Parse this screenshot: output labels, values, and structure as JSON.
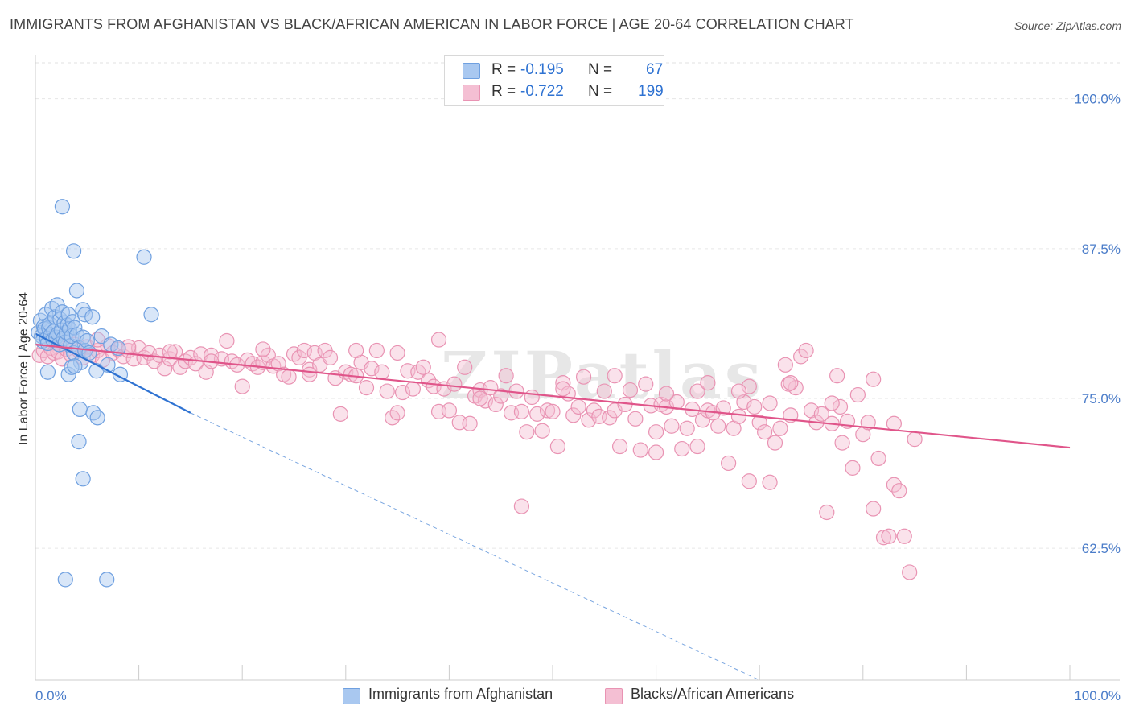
{
  "title": "IMMIGRANTS FROM AFGHANISTAN VS BLACK/AFRICAN AMERICAN IN LABOR FORCE | AGE 20-64 CORRELATION CHART",
  "source": "Source: ZipAtlas.com",
  "watermark": "ZIPatlas",
  "legend": {
    "rows": [
      {
        "r_label": "R =",
        "r_value": "-0.195",
        "n_label": "N =",
        "n_value": "67"
      },
      {
        "r_label": "R =",
        "r_value": "-0.722",
        "n_label": "N =",
        "n_value": "199"
      }
    ]
  },
  "chart_data": {
    "type": "scatter",
    "ylabel": "In Labor Force | Age 20-64",
    "xlim": [
      0,
      100
    ],
    "ylim": [
      51.5,
      103
    ],
    "y_ticks": [
      {
        "value": 100.0,
        "label": "100.0%"
      },
      {
        "value": 87.5,
        "label": "87.5%"
      },
      {
        "value": 75.0,
        "label": "75.0%"
      },
      {
        "value": 62.5,
        "label": "62.5%"
      }
    ],
    "x_tick_labels": {
      "left": "0.0%",
      "right": "100.0%"
    },
    "grid": true,
    "series": [
      {
        "name": "Immigrants from Afghanistan",
        "color": "#6fa0e0",
        "fill": "#a9c8f0",
        "trend_color": "#2e72d2",
        "trend": {
          "x": [
            0,
            15
          ],
          "y": [
            80.4,
            73.8
          ],
          "dashed_to": [
            70,
            51.5
          ]
        },
        "points": [
          [
            0.3,
            80.5
          ],
          [
            0.5,
            81.5
          ],
          [
            0.6,
            80.2
          ],
          [
            0.7,
            79.8
          ],
          [
            0.8,
            81.0
          ],
          [
            0.9,
            80.8
          ],
          [
            1.0,
            82.0
          ],
          [
            1.1,
            80.0
          ],
          [
            1.2,
            79.6
          ],
          [
            1.3,
            80.9
          ],
          [
            1.4,
            81.2
          ],
          [
            1.5,
            80.3
          ],
          [
            1.6,
            82.5
          ],
          [
            1.7,
            79.9
          ],
          [
            1.8,
            80.6
          ],
          [
            1.9,
            81.8
          ],
          [
            2.0,
            80.1
          ],
          [
            2.1,
            82.8
          ],
          [
            2.2,
            80.4
          ],
          [
            2.3,
            79.5
          ],
          [
            2.4,
            81.6
          ],
          [
            2.5,
            80.7
          ],
          [
            2.6,
            82.2
          ],
          [
            2.7,
            80.0
          ],
          [
            2.8,
            81.3
          ],
          [
            2.9,
            79.7
          ],
          [
            3.0,
            80.5
          ],
          [
            3.1,
            81.1
          ],
          [
            3.2,
            82.0
          ],
          [
            3.3,
            80.8
          ],
          [
            3.4,
            79.4
          ],
          [
            3.5,
            80.2
          ],
          [
            3.6,
            81.4
          ],
          [
            3.7,
            78.8
          ],
          [
            3.8,
            80.9
          ],
          [
            4.0,
            80.3
          ],
          [
            4.2,
            79.2
          ],
          [
            4.4,
            78.0
          ],
          [
            4.6,
            80.1
          ],
          [
            4.8,
            79.0
          ],
          [
            1.2,
            77.2
          ],
          [
            2.6,
            91.0
          ],
          [
            3.2,
            77.0
          ],
          [
            3.5,
            77.6
          ],
          [
            3.7,
            87.3
          ],
          [
            4.0,
            84.0
          ],
          [
            4.2,
            71.4
          ],
          [
            4.3,
            74.1
          ],
          [
            4.6,
            82.4
          ],
          [
            4.8,
            82.0
          ],
          [
            5.0,
            79.8
          ],
          [
            5.2,
            78.8
          ],
          [
            5.5,
            81.8
          ],
          [
            5.6,
            73.8
          ],
          [
            5.9,
            77.3
          ],
          [
            6.0,
            73.4
          ],
          [
            6.4,
            80.2
          ],
          [
            7.0,
            77.8
          ],
          [
            7.3,
            79.5
          ],
          [
            8.0,
            79.2
          ],
          [
            8.2,
            77.0
          ],
          [
            10.5,
            86.8
          ],
          [
            11.2,
            82.0
          ],
          [
            2.9,
            59.9
          ],
          [
            3.8,
            77.7
          ],
          [
            4.6,
            68.3
          ],
          [
            6.9,
            59.9
          ]
        ]
      },
      {
        "name": "Blacks/African Americans",
        "color": "#e993b3",
        "fill": "#f4bfd3",
        "trend_color": "#e0558a",
        "trend": {
          "x": [
            0,
            100
          ],
          "y": [
            79.5,
            70.9
          ]
        },
        "points": [
          [
            0.4,
            78.6
          ],
          [
            0.8,
            79.0
          ],
          [
            1.2,
            78.5
          ],
          [
            1.5,
            79.2
          ],
          [
            1.8,
            78.8
          ],
          [
            2.0,
            79.6
          ],
          [
            2.2,
            78.9
          ],
          [
            2.6,
            78.3
          ],
          [
            3.0,
            79.1
          ],
          [
            3.4,
            78.7
          ],
          [
            3.8,
            79.5
          ],
          [
            4.2,
            79.0
          ],
          [
            4.6,
            78.4
          ],
          [
            5.0,
            79.3
          ],
          [
            5.5,
            78.6
          ],
          [
            6.0,
            79.0
          ],
          [
            6.5,
            78.2
          ],
          [
            7.0,
            79.4
          ],
          [
            7.5,
            78.8
          ],
          [
            8.0,
            79.1
          ],
          [
            8.5,
            78.5
          ],
          [
            9.0,
            79.0
          ],
          [
            9.5,
            78.3
          ],
          [
            10.0,
            79.2
          ],
          [
            10.5,
            78.4
          ],
          [
            11.0,
            78.8
          ],
          [
            11.5,
            78.1
          ],
          [
            12.0,
            78.6
          ],
          [
            12.5,
            77.5
          ],
          [
            13.0,
            78.3
          ],
          [
            13.5,
            78.9
          ],
          [
            14.0,
            77.6
          ],
          [
            14.5,
            78.1
          ],
          [
            15.0,
            78.4
          ],
          [
            15.5,
            77.9
          ],
          [
            16.0,
            78.7
          ],
          [
            16.5,
            77.2
          ],
          [
            17.0,
            78.6
          ],
          [
            18.0,
            78.3
          ],
          [
            18.5,
            79.8
          ],
          [
            19.0,
            78.1
          ],
          [
            19.5,
            77.8
          ],
          [
            20.0,
            76.0
          ],
          [
            20.5,
            78.2
          ],
          [
            21.0,
            77.9
          ],
          [
            21.5,
            77.6
          ],
          [
            22.0,
            78.0
          ],
          [
            22.5,
            78.6
          ],
          [
            23.0,
            77.7
          ],
          [
            23.5,
            77.9
          ],
          [
            24.0,
            77.0
          ],
          [
            24.5,
            76.8
          ],
          [
            25.0,
            78.7
          ],
          [
            25.5,
            78.4
          ],
          [
            26.0,
            79.0
          ],
          [
            26.5,
            77.4
          ],
          [
            27.0,
            78.8
          ],
          [
            27.5,
            77.8
          ],
          [
            28.0,
            79.0
          ],
          [
            28.5,
            78.4
          ],
          [
            29.0,
            76.7
          ],
          [
            29.5,
            73.7
          ],
          [
            30.0,
            77.2
          ],
          [
            30.5,
            77.0
          ],
          [
            31.0,
            76.9
          ],
          [
            31.5,
            78.0
          ],
          [
            32.0,
            75.9
          ],
          [
            32.5,
            77.5
          ],
          [
            33.0,
            79.0
          ],
          [
            33.5,
            77.2
          ],
          [
            34.0,
            75.6
          ],
          [
            34.5,
            73.4
          ],
          [
            35.0,
            73.8
          ],
          [
            35.5,
            75.5
          ],
          [
            36.0,
            77.3
          ],
          [
            36.5,
            75.8
          ],
          [
            37.0,
            77.2
          ],
          [
            37.5,
            77.6
          ],
          [
            38.0,
            76.5
          ],
          [
            38.5,
            76.0
          ],
          [
            39.0,
            73.9
          ],
          [
            39.5,
            75.8
          ],
          [
            40.0,
            74.0
          ],
          [
            40.5,
            76.2
          ],
          [
            41.0,
            73.0
          ],
          [
            41.5,
            77.6
          ],
          [
            42.0,
            72.9
          ],
          [
            42.5,
            75.2
          ],
          [
            43.0,
            75.7
          ],
          [
            43.5,
            74.8
          ],
          [
            44.0,
            75.9
          ],
          [
            44.5,
            74.5
          ],
          [
            45.0,
            75.2
          ],
          [
            45.5,
            76.9
          ],
          [
            46.0,
            73.8
          ],
          [
            46.5,
            75.6
          ],
          [
            47.0,
            73.9
          ],
          [
            47.5,
            72.2
          ],
          [
            48.0,
            75.1
          ],
          [
            48.5,
            73.7
          ],
          [
            49.0,
            72.3
          ],
          [
            49.5,
            74.0
          ],
          [
            50.0,
            73.9
          ],
          [
            50.5,
            71.0
          ],
          [
            51.0,
            76.3
          ],
          [
            51.5,
            75.4
          ],
          [
            52.0,
            73.6
          ],
          [
            52.5,
            74.3
          ],
          [
            53.0,
            76.8
          ],
          [
            53.5,
            73.2
          ],
          [
            54.0,
            74.0
          ],
          [
            54.5,
            73.5
          ],
          [
            55.0,
            75.6
          ],
          [
            55.5,
            73.4
          ],
          [
            56.0,
            74.0
          ],
          [
            56.5,
            71.0
          ],
          [
            57.0,
            74.5
          ],
          [
            57.5,
            75.7
          ],
          [
            58.0,
            73.3
          ],
          [
            58.5,
            70.7
          ],
          [
            59.0,
            76.2
          ],
          [
            59.5,
            74.4
          ],
          [
            60.0,
            72.2
          ],
          [
            60.5,
            74.5
          ],
          [
            61.0,
            74.3
          ],
          [
            61.5,
            72.7
          ],
          [
            62.0,
            74.7
          ],
          [
            62.5,
            70.8
          ],
          [
            63.0,
            72.5
          ],
          [
            63.5,
            74.1
          ],
          [
            64.0,
            75.6
          ],
          [
            64.5,
            73.2
          ],
          [
            65.0,
            74.0
          ],
          [
            65.5,
            73.8
          ],
          [
            66.0,
            72.7
          ],
          [
            66.5,
            74.2
          ],
          [
            67.0,
            69.6
          ],
          [
            67.5,
            72.5
          ],
          [
            68.0,
            73.5
          ],
          [
            68.5,
            74.7
          ],
          [
            69.0,
            76.0
          ],
          [
            69.5,
            74.3
          ],
          [
            70.0,
            73.0
          ],
          [
            70.5,
            72.2
          ],
          [
            71.0,
            74.6
          ],
          [
            71.5,
            71.3
          ],
          [
            72.0,
            72.5
          ],
          [
            72.5,
            77.8
          ],
          [
            73.0,
            73.6
          ],
          [
            73.5,
            75.9
          ],
          [
            74.0,
            78.5
          ],
          [
            74.5,
            79.0
          ],
          [
            75.0,
            74.0
          ],
          [
            75.5,
            73.0
          ],
          [
            76.0,
            73.7
          ],
          [
            76.5,
            65.5
          ],
          [
            77.0,
            72.9
          ],
          [
            77.5,
            76.9
          ],
          [
            78.0,
            71.3
          ],
          [
            78.5,
            73.1
          ],
          [
            79.0,
            69.2
          ],
          [
            79.5,
            75.3
          ],
          [
            80.0,
            72.0
          ],
          [
            80.5,
            73.0
          ],
          [
            81.0,
            65.8
          ],
          [
            81.5,
            70.0
          ],
          [
            82.0,
            63.4
          ],
          [
            82.5,
            63.5
          ],
          [
            83.0,
            67.8
          ],
          [
            83.5,
            67.3
          ],
          [
            84.0,
            63.5
          ],
          [
            84.5,
            60.5
          ],
          [
            85.0,
            71.6
          ],
          [
            71.0,
            68.0
          ],
          [
            72.8,
            76.2
          ],
          [
            77.8,
            74.3
          ],
          [
            6.0,
            79.9
          ],
          [
            9.0,
            79.3
          ],
          [
            13.0,
            78.9
          ],
          [
            17.0,
            78.1
          ],
          [
            22.0,
            79.1
          ],
          [
            26.5,
            77.0
          ],
          [
            31.0,
            79.0
          ],
          [
            35.0,
            78.8
          ],
          [
            39.0,
            79.9
          ],
          [
            43.0,
            75.0
          ],
          [
            47.0,
            66.0
          ],
          [
            51.0,
            75.8
          ],
          [
            56.0,
            76.9
          ],
          [
            61.0,
            75.4
          ],
          [
            65.0,
            76.3
          ],
          [
            69.0,
            68.1
          ],
          [
            73.0,
            76.3
          ],
          [
            77.0,
            74.6
          ],
          [
            81.0,
            76.6
          ],
          [
            83.0,
            72.9
          ],
          [
            60.0,
            70.5
          ],
          [
            64.0,
            71.0
          ],
          [
            68.0,
            75.6
          ]
        ]
      }
    ]
  }
}
